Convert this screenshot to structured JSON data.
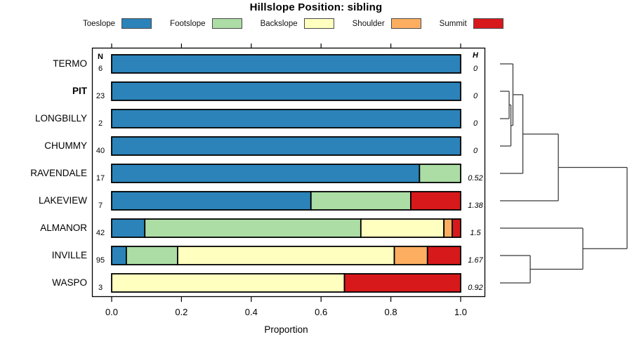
{
  "title": "Hillslope Position: sibling",
  "columns": {
    "n": "N",
    "h": "H"
  },
  "axis": {
    "label": "Proportion",
    "ticks": [
      {
        "label": "0.0",
        "value": 0
      },
      {
        "label": "0.2",
        "value": 0.2
      },
      {
        "label": "0.4",
        "value": 0.4
      },
      {
        "label": "0.6",
        "value": 0.6
      },
      {
        "label": "0.8",
        "value": 0.8
      },
      {
        "label": "1.0",
        "value": 1
      }
    ]
  },
  "legend": [
    {
      "label": "Toeslope",
      "color": "#2b83ba"
    },
    {
      "label": "Footslope",
      "color": "#abdda4"
    },
    {
      "label": "Backslope",
      "color": "#ffffbf"
    },
    {
      "label": "Shoulder",
      "color": "#fdae61"
    },
    {
      "label": "Summit",
      "color": "#d7191c"
    }
  ],
  "chart_data": {
    "type": "bar",
    "orientation": "horizontal",
    "stacked": true,
    "title": "Hillslope Position: sibling",
    "xlabel": "Proportion",
    "xlim": [
      0,
      1
    ],
    "categories": [
      "Toeslope",
      "Footslope",
      "Backslope",
      "Shoulder",
      "Summit"
    ],
    "series_colors": {
      "Toeslope": "#2b83ba",
      "Footslope": "#abdda4",
      "Backslope": "#ffffbf",
      "Shoulder": "#fdae61",
      "Summit": "#d7191c"
    },
    "rows": [
      {
        "name": "TERMO",
        "bold": false,
        "n": 6,
        "h": "0",
        "segments": [
          {
            "category": "Toeslope",
            "value": 1.0
          }
        ]
      },
      {
        "name": "PIT",
        "bold": true,
        "n": 23,
        "h": "0",
        "segments": [
          {
            "category": "Toeslope",
            "value": 1.0
          }
        ]
      },
      {
        "name": "LONGBILLY",
        "bold": false,
        "n": 2,
        "h": "0",
        "segments": [
          {
            "category": "Toeslope",
            "value": 1.0
          }
        ]
      },
      {
        "name": "CHUMMY",
        "bold": false,
        "n": 40,
        "h": "0",
        "segments": [
          {
            "category": "Toeslope",
            "value": 1.0
          }
        ]
      },
      {
        "name": "RAVENDALE",
        "bold": false,
        "n": 17,
        "h": "0.52",
        "segments": [
          {
            "category": "Toeslope",
            "value": 0.882
          },
          {
            "category": "Footslope",
            "value": 0.118
          }
        ]
      },
      {
        "name": "LAKEVIEW",
        "bold": false,
        "n": 7,
        "h": "1.38",
        "segments": [
          {
            "category": "Toeslope",
            "value": 0.571
          },
          {
            "category": "Footslope",
            "value": 0.286
          },
          {
            "category": "Summit",
            "value": 0.143
          }
        ]
      },
      {
        "name": "ALMANOR",
        "bold": false,
        "n": 42,
        "h": "1.5",
        "segments": [
          {
            "category": "Toeslope",
            "value": 0.095
          },
          {
            "category": "Footslope",
            "value": 0.619
          },
          {
            "category": "Backslope",
            "value": 0.238
          },
          {
            "category": "Shoulder",
            "value": 0.024
          },
          {
            "category": "Summit",
            "value": 0.024
          }
        ]
      },
      {
        "name": "INVILLE",
        "bold": false,
        "n": 95,
        "h": "1.67",
        "segments": [
          {
            "category": "Toeslope",
            "value": 0.042
          },
          {
            "category": "Footslope",
            "value": 0.147
          },
          {
            "category": "Backslope",
            "value": 0.621
          },
          {
            "category": "Shoulder",
            "value": 0.095
          },
          {
            "category": "Summit",
            "value": 0.095
          }
        ]
      },
      {
        "name": "WASPO",
        "bold": false,
        "n": 3,
        "h": "0.92",
        "segments": [
          {
            "category": "Backslope",
            "value": 0.667
          },
          {
            "category": "Summit",
            "value": 0.333
          }
        ]
      }
    ],
    "dendrogram": {
      "h": 1.0,
      "children": [
        {
          "h": 0.459,
          "children": [
            {
              "h": 0.18,
              "children": [
                {
                  "h": 0.102,
                  "children": [
                    {
                      "leaf": "TERMO"
                    },
                    {
                      "h": 0.086,
                      "children": [
                        {
                          "h": 0.072,
                          "children": [
                            {
                              "leaf": "PIT"
                            },
                            {
                              "leaf": "LONGBILLY"
                            }
                          ]
                        },
                        {
                          "leaf": "CHUMMY"
                        }
                      ]
                    }
                  ]
                },
                {
                  "leaf": "RAVENDALE"
                }
              ]
            },
            {
              "leaf": "LAKEVIEW"
            }
          ]
        },
        {
          "h": 0.652,
          "children": [
            {
              "leaf": "ALMANOR"
            },
            {
              "h": 0.238,
              "children": [
                {
                  "leaf": "INVILLE"
                },
                {
                  "leaf": "WASPO"
                }
              ]
            }
          ]
        }
      ]
    }
  }
}
